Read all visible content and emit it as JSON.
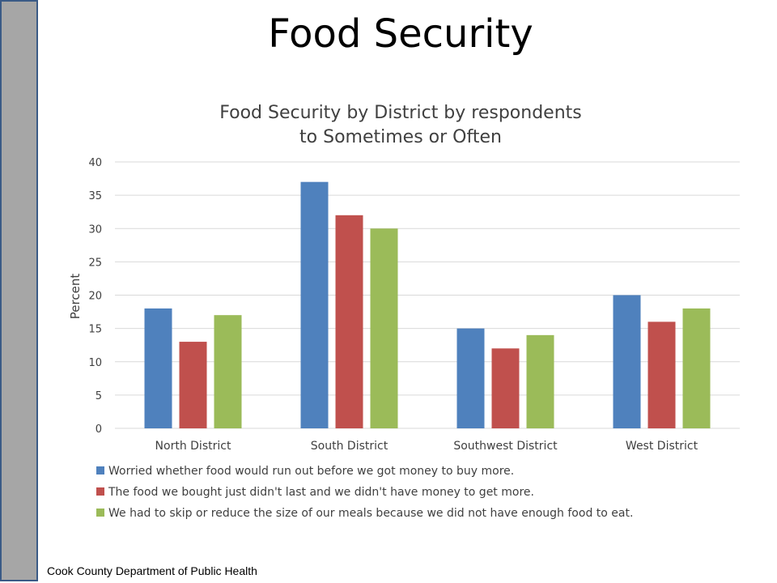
{
  "slide": {
    "title": "Food Security",
    "footer": "Cook County Department of Public Health"
  },
  "colors": {
    "series1": "#4f81bd",
    "series2": "#c0504d",
    "series3": "#9bbb59",
    "grid": "#d9d9d9"
  },
  "chart_data": {
    "type": "bar",
    "title": "Food Security by District by respondents to Sometimes or Often",
    "title_lines": [
      "Food Security by District by respondents",
      "to Sometimes or Often"
    ],
    "xlabel": "",
    "ylabel": "Percent",
    "ylim": [
      0,
      40
    ],
    "yticks": [
      0,
      5,
      10,
      15,
      20,
      25,
      30,
      35,
      40
    ],
    "grid": true,
    "legend": "bottom",
    "categories": [
      "North District",
      "South District",
      "Southwest District",
      "West District"
    ],
    "series": [
      {
        "name": "Worried whether food would run out before we got money to buy more.",
        "values": [
          18,
          37,
          15,
          20
        ]
      },
      {
        "name": "The food we bought just didn't last and we didn't have money to get more.",
        "values": [
          13,
          32,
          12,
          16
        ]
      },
      {
        "name": "We had to skip or reduce the size of our meals because we did not have enough food to eat.",
        "values": [
          17,
          30,
          14,
          18
        ]
      }
    ]
  }
}
